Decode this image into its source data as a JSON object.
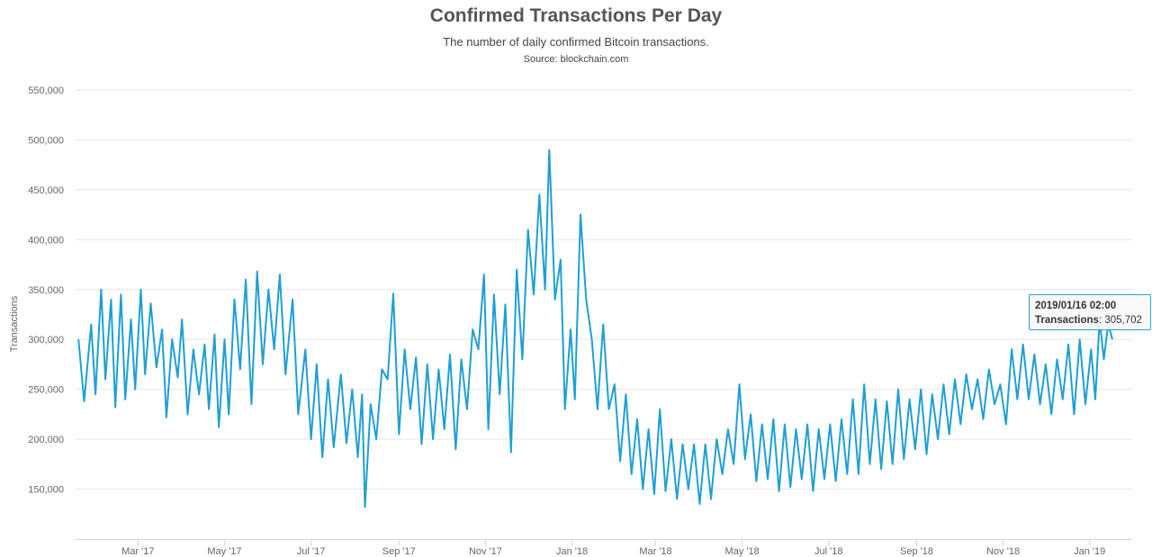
{
  "header": {
    "title": "Confirmed Transactions Per Day",
    "subtitle": "The number of daily confirmed Bitcoin transactions.",
    "source": "Source: blockchain.com"
  },
  "tooltip": {
    "date": "2019/01/16 02:00",
    "label": "Transactions",
    "value": "305,702"
  },
  "colors": {
    "line": "#1f9fd4",
    "grid": "#e6e6e6"
  },
  "chart_data": {
    "type": "line",
    "ylabel": "Transactions",
    "ylim": [
      100000,
      550000
    ],
    "yticks": [
      150000,
      200000,
      250000,
      300000,
      350000,
      400000,
      450000,
      500000,
      550000
    ],
    "ytick_labels": [
      "150,000",
      "200,000",
      "250,000",
      "300,000",
      "350,000",
      "400,000",
      "450,000",
      "500,000",
      "550,000"
    ],
    "xlim": [
      "2017-01-16",
      "2019-01-31"
    ],
    "xticks": [
      "2017-03-01",
      "2017-05-01",
      "2017-07-01",
      "2017-09-01",
      "2017-11-01",
      "2018-01-01",
      "2018-03-01",
      "2018-05-01",
      "2018-07-01",
      "2018-09-01",
      "2018-11-01",
      "2019-01-01"
    ],
    "xtick_labels": [
      "Mar '17",
      "May '17",
      "Jul '17",
      "Sep '17",
      "Nov '17",
      "Jan '18",
      "Mar '18",
      "May '18",
      "Jul '18",
      "Sep '18",
      "Nov '18",
      "Jan '19"
    ],
    "series": [
      {
        "points": [
          [
            "2017-01-18",
            300000
          ],
          [
            "2017-01-22",
            238000
          ],
          [
            "2017-01-27",
            315000
          ],
          [
            "2017-01-30",
            245000
          ],
          [
            "2017-02-03",
            350000
          ],
          [
            "2017-02-06",
            260000
          ],
          [
            "2017-02-10",
            340000
          ],
          [
            "2017-02-13",
            232000
          ],
          [
            "2017-02-17",
            345000
          ],
          [
            "2017-02-20",
            240000
          ],
          [
            "2017-02-24",
            320000
          ],
          [
            "2017-02-27",
            250000
          ],
          [
            "2017-03-03",
            350000
          ],
          [
            "2017-03-06",
            265000
          ],
          [
            "2017-03-10",
            336000
          ],
          [
            "2017-03-14",
            272000
          ],
          [
            "2017-03-18",
            310000
          ],
          [
            "2017-03-21",
            222000
          ],
          [
            "2017-03-25",
            300000
          ],
          [
            "2017-03-29",
            262000
          ],
          [
            "2017-04-01",
            320000
          ],
          [
            "2017-04-05",
            225000
          ],
          [
            "2017-04-09",
            290000
          ],
          [
            "2017-04-13",
            245000
          ],
          [
            "2017-04-17",
            295000
          ],
          [
            "2017-04-20",
            230000
          ],
          [
            "2017-04-24",
            305000
          ],
          [
            "2017-04-27",
            212000
          ],
          [
            "2017-05-01",
            300000
          ],
          [
            "2017-05-04",
            225000
          ],
          [
            "2017-05-08",
            340000
          ],
          [
            "2017-05-12",
            270000
          ],
          [
            "2017-05-16",
            360000
          ],
          [
            "2017-05-20",
            235000
          ],
          [
            "2017-05-24",
            368000
          ],
          [
            "2017-05-28",
            275000
          ],
          [
            "2017-06-01",
            350000
          ],
          [
            "2017-06-05",
            290000
          ],
          [
            "2017-06-09",
            365000
          ],
          [
            "2017-06-13",
            265000
          ],
          [
            "2017-06-18",
            340000
          ],
          [
            "2017-06-22",
            225000
          ],
          [
            "2017-06-27",
            290000
          ],
          [
            "2017-07-01",
            200000
          ],
          [
            "2017-07-05",
            275000
          ],
          [
            "2017-07-09",
            182000
          ],
          [
            "2017-07-13",
            260000
          ],
          [
            "2017-07-17",
            192000
          ],
          [
            "2017-07-22",
            265000
          ],
          [
            "2017-07-26",
            196000
          ],
          [
            "2017-07-30",
            250000
          ],
          [
            "2017-08-03",
            182000
          ],
          [
            "2017-08-06",
            245000
          ],
          [
            "2017-08-08",
            132000
          ],
          [
            "2017-08-12",
            235000
          ],
          [
            "2017-08-16",
            200000
          ],
          [
            "2017-08-20",
            270000
          ],
          [
            "2017-08-24",
            260000
          ],
          [
            "2017-08-28",
            346000
          ],
          [
            "2017-09-01",
            205000
          ],
          [
            "2017-09-05",
            290000
          ],
          [
            "2017-09-09",
            230000
          ],
          [
            "2017-09-13",
            282000
          ],
          [
            "2017-09-17",
            195000
          ],
          [
            "2017-09-21",
            275000
          ],
          [
            "2017-09-25",
            200000
          ],
          [
            "2017-09-29",
            270000
          ],
          [
            "2017-10-03",
            210000
          ],
          [
            "2017-10-07",
            285000
          ],
          [
            "2017-10-11",
            190000
          ],
          [
            "2017-10-15",
            280000
          ],
          [
            "2017-10-19",
            230000
          ],
          [
            "2017-10-23",
            310000
          ],
          [
            "2017-10-27",
            290000
          ],
          [
            "2017-10-31",
            365000
          ],
          [
            "2017-11-03",
            210000
          ],
          [
            "2017-11-07",
            345000
          ],
          [
            "2017-11-11",
            245000
          ],
          [
            "2017-11-15",
            335000
          ],
          [
            "2017-11-19",
            187000
          ],
          [
            "2017-11-23",
            370000
          ],
          [
            "2017-11-27",
            280000
          ],
          [
            "2017-12-01",
            410000
          ],
          [
            "2017-12-05",
            345000
          ],
          [
            "2017-12-09",
            445000
          ],
          [
            "2017-12-13",
            350000
          ],
          [
            "2017-12-16",
            490000
          ],
          [
            "2017-12-20",
            340000
          ],
          [
            "2017-12-24",
            380000
          ],
          [
            "2017-12-27",
            230000
          ],
          [
            "2017-12-31",
            310000
          ],
          [
            "2018-01-03",
            240000
          ],
          [
            "2018-01-07",
            425000
          ],
          [
            "2018-01-11",
            340000
          ],
          [
            "2018-01-15",
            300000
          ],
          [
            "2018-01-19",
            230000
          ],
          [
            "2018-01-23",
            315000
          ],
          [
            "2018-01-27",
            230000
          ],
          [
            "2018-01-31",
            255000
          ],
          [
            "2018-02-04",
            178000
          ],
          [
            "2018-02-08",
            245000
          ],
          [
            "2018-02-12",
            165000
          ],
          [
            "2018-02-16",
            220000
          ],
          [
            "2018-02-20",
            150000
          ],
          [
            "2018-02-24",
            210000
          ],
          [
            "2018-02-28",
            145000
          ],
          [
            "2018-03-04",
            230000
          ],
          [
            "2018-03-08",
            148000
          ],
          [
            "2018-03-12",
            200000
          ],
          [
            "2018-03-16",
            140000
          ],
          [
            "2018-03-20",
            195000
          ],
          [
            "2018-03-24",
            150000
          ],
          [
            "2018-03-28",
            195000
          ],
          [
            "2018-04-01",
            135000
          ],
          [
            "2018-04-05",
            195000
          ],
          [
            "2018-04-09",
            140000
          ],
          [
            "2018-04-13",
            200000
          ],
          [
            "2018-04-17",
            165000
          ],
          [
            "2018-04-21",
            210000
          ],
          [
            "2018-04-25",
            175000
          ],
          [
            "2018-04-29",
            255000
          ],
          [
            "2018-05-03",
            180000
          ],
          [
            "2018-05-07",
            225000
          ],
          [
            "2018-05-11",
            158000
          ],
          [
            "2018-05-15",
            215000
          ],
          [
            "2018-05-19",
            160000
          ],
          [
            "2018-05-23",
            220000
          ],
          [
            "2018-05-27",
            148000
          ],
          [
            "2018-05-31",
            215000
          ],
          [
            "2018-06-04",
            152000
          ],
          [
            "2018-06-08",
            210000
          ],
          [
            "2018-06-12",
            160000
          ],
          [
            "2018-06-16",
            215000
          ],
          [
            "2018-06-20",
            148000
          ],
          [
            "2018-06-24",
            210000
          ],
          [
            "2018-06-28",
            160000
          ],
          [
            "2018-07-02",
            215000
          ],
          [
            "2018-07-06",
            158000
          ],
          [
            "2018-07-10",
            220000
          ],
          [
            "2018-07-14",
            165000
          ],
          [
            "2018-07-18",
            240000
          ],
          [
            "2018-07-22",
            165000
          ],
          [
            "2018-07-26",
            255000
          ],
          [
            "2018-07-30",
            175000
          ],
          [
            "2018-08-03",
            240000
          ],
          [
            "2018-08-07",
            170000
          ],
          [
            "2018-08-11",
            238000
          ],
          [
            "2018-08-15",
            175000
          ],
          [
            "2018-08-19",
            250000
          ],
          [
            "2018-08-23",
            180000
          ],
          [
            "2018-08-27",
            240000
          ],
          [
            "2018-08-31",
            190000
          ],
          [
            "2018-09-04",
            250000
          ],
          [
            "2018-09-08",
            185000
          ],
          [
            "2018-09-12",
            245000
          ],
          [
            "2018-09-16",
            200000
          ],
          [
            "2018-09-20",
            255000
          ],
          [
            "2018-09-24",
            205000
          ],
          [
            "2018-09-28",
            260000
          ],
          [
            "2018-10-02",
            215000
          ],
          [
            "2018-10-06",
            265000
          ],
          [
            "2018-10-10",
            230000
          ],
          [
            "2018-10-14",
            260000
          ],
          [
            "2018-10-18",
            220000
          ],
          [
            "2018-10-22",
            270000
          ],
          [
            "2018-10-26",
            235000
          ],
          [
            "2018-10-30",
            255000
          ],
          [
            "2018-11-03",
            215000
          ],
          [
            "2018-11-07",
            290000
          ],
          [
            "2018-11-11",
            240000
          ],
          [
            "2018-11-15",
            295000
          ],
          [
            "2018-11-19",
            240000
          ],
          [
            "2018-11-23",
            285000
          ],
          [
            "2018-11-27",
            235000
          ],
          [
            "2018-12-01",
            275000
          ],
          [
            "2018-12-05",
            225000
          ],
          [
            "2018-12-09",
            280000
          ],
          [
            "2018-12-13",
            240000
          ],
          [
            "2018-12-17",
            295000
          ],
          [
            "2018-12-21",
            225000
          ],
          [
            "2018-12-25",
            300000
          ],
          [
            "2018-12-29",
            235000
          ],
          [
            "2019-01-02",
            290000
          ],
          [
            "2019-01-05",
            240000
          ],
          [
            "2019-01-08",
            320000
          ],
          [
            "2019-01-11",
            280000
          ],
          [
            "2019-01-14",
            315000
          ],
          [
            "2019-01-16",
            305702
          ],
          [
            "2019-01-17",
            300000
          ]
        ]
      }
    ]
  }
}
